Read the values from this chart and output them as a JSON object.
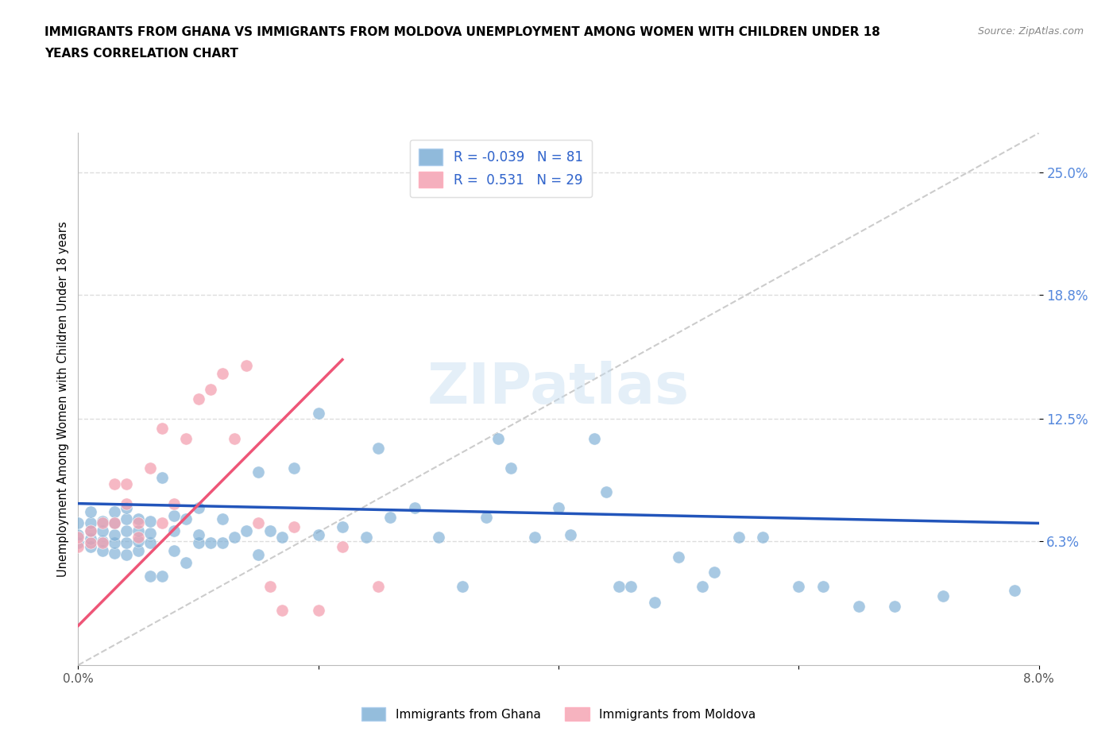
{
  "title_line1": "IMMIGRANTS FROM GHANA VS IMMIGRANTS FROM MOLDOVA UNEMPLOYMENT AMONG WOMEN WITH CHILDREN UNDER 18",
  "title_line2": "YEARS CORRELATION CHART",
  "source": "Source: ZipAtlas.com",
  "ylabel": "Unemployment Among Women with Children Under 18 years",
  "xlim": [
    0.0,
    0.08
  ],
  "ylim": [
    0.0,
    0.27
  ],
  "yticks": [
    0.063,
    0.125,
    0.188,
    0.25
  ],
  "ytick_labels": [
    "6.3%",
    "12.5%",
    "18.8%",
    "25.0%"
  ],
  "xticks": [
    0.0,
    0.02,
    0.04,
    0.06,
    0.08
  ],
  "xtick_labels": [
    "0.0%",
    "",
    "",
    "",
    "8.0%"
  ],
  "ghana_R": -0.039,
  "ghana_N": 81,
  "moldova_R": 0.531,
  "moldova_N": 29,
  "ghana_color": "#7aadd4",
  "moldova_color": "#f4a0b0",
  "ghana_line_color": "#2255bb",
  "moldova_line_color": "#ee5577",
  "diagonal_color": "#cccccc",
  "watermark": "ZIPatlas",
  "ghana_scatter_x": [
    0.0,
    0.0,
    0.0,
    0.001,
    0.001,
    0.001,
    0.001,
    0.001,
    0.002,
    0.002,
    0.002,
    0.002,
    0.003,
    0.003,
    0.003,
    0.003,
    0.003,
    0.004,
    0.004,
    0.004,
    0.004,
    0.004,
    0.005,
    0.005,
    0.005,
    0.005,
    0.006,
    0.006,
    0.006,
    0.006,
    0.007,
    0.007,
    0.008,
    0.008,
    0.008,
    0.009,
    0.009,
    0.01,
    0.01,
    0.01,
    0.011,
    0.012,
    0.012,
    0.013,
    0.014,
    0.015,
    0.015,
    0.016,
    0.017,
    0.018,
    0.02,
    0.02,
    0.022,
    0.024,
    0.025,
    0.026,
    0.028,
    0.03,
    0.032,
    0.034,
    0.035,
    0.036,
    0.038,
    0.04,
    0.041,
    0.043,
    0.044,
    0.045,
    0.046,
    0.048,
    0.05,
    0.052,
    0.053,
    0.055,
    0.057,
    0.06,
    0.062,
    0.065,
    0.068,
    0.072,
    0.078
  ],
  "ghana_scatter_y": [
    0.062,
    0.066,
    0.072,
    0.06,
    0.064,
    0.068,
    0.072,
    0.078,
    0.058,
    0.063,
    0.068,
    0.073,
    0.057,
    0.062,
    0.066,
    0.072,
    0.078,
    0.056,
    0.062,
    0.068,
    0.074,
    0.08,
    0.058,
    0.063,
    0.068,
    0.074,
    0.045,
    0.062,
    0.067,
    0.073,
    0.045,
    0.095,
    0.058,
    0.068,
    0.076,
    0.052,
    0.074,
    0.062,
    0.066,
    0.08,
    0.062,
    0.062,
    0.074,
    0.065,
    0.068,
    0.056,
    0.098,
    0.068,
    0.065,
    0.1,
    0.066,
    0.128,
    0.07,
    0.065,
    0.11,
    0.075,
    0.08,
    0.065,
    0.04,
    0.075,
    0.115,
    0.1,
    0.065,
    0.08,
    0.066,
    0.115,
    0.088,
    0.04,
    0.04,
    0.032,
    0.055,
    0.04,
    0.047,
    0.065,
    0.065,
    0.04,
    0.04,
    0.03,
    0.03,
    0.035,
    0.038
  ],
  "moldova_scatter_x": [
    0.0,
    0.0,
    0.001,
    0.001,
    0.002,
    0.002,
    0.003,
    0.003,
    0.004,
    0.004,
    0.005,
    0.005,
    0.006,
    0.007,
    0.007,
    0.008,
    0.009,
    0.01,
    0.011,
    0.012,
    0.013,
    0.014,
    0.015,
    0.016,
    0.017,
    0.018,
    0.02,
    0.022,
    0.025
  ],
  "moldova_scatter_y": [
    0.06,
    0.065,
    0.062,
    0.068,
    0.062,
    0.072,
    0.072,
    0.092,
    0.082,
    0.092,
    0.065,
    0.072,
    0.1,
    0.072,
    0.12,
    0.082,
    0.115,
    0.135,
    0.14,
    0.148,
    0.115,
    0.152,
    0.072,
    0.04,
    0.028,
    0.07,
    0.028,
    0.06,
    0.04
  ],
  "ghana_trend_x": [
    0.0,
    0.08
  ],
  "ghana_trend_y": [
    0.082,
    0.072
  ],
  "moldova_trend_x": [
    0.0,
    0.022
  ],
  "moldova_trend_y": [
    0.02,
    0.155
  ]
}
